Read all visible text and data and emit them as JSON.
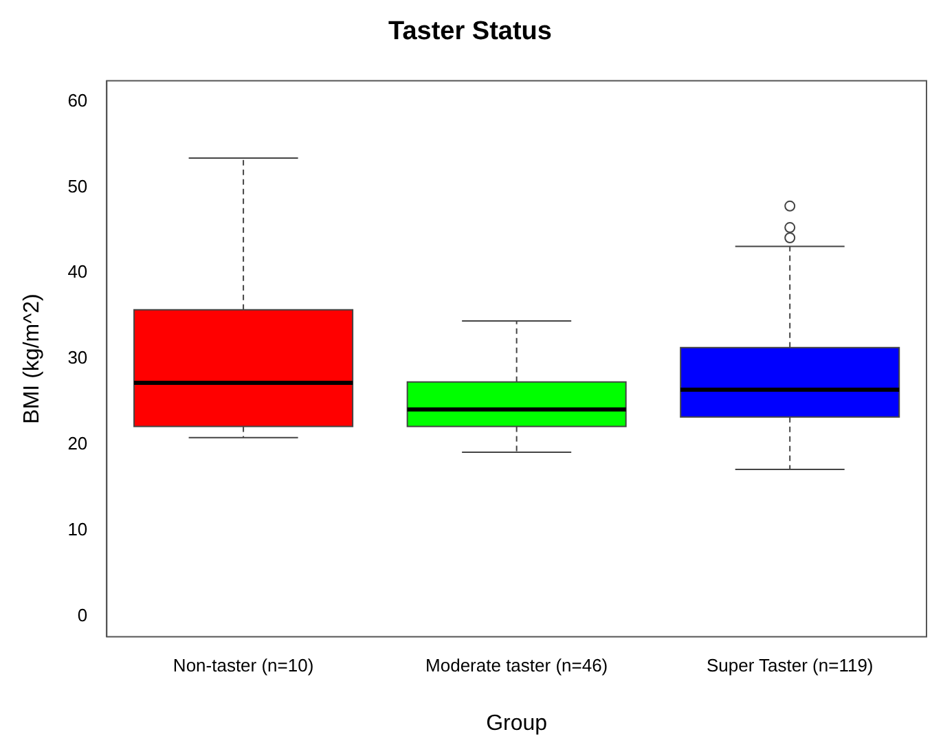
{
  "chart_data": {
    "type": "box",
    "title": "Taster Status",
    "xlabel": "Group",
    "ylabel": "BMI (kg/m^2)",
    "categories": [
      "Non-taster (n=10)",
      "Moderate taster (n=46)",
      "Super Taster (n=119)"
    ],
    "colors": [
      "#ff0000",
      "#00ff00",
      "#0000ff"
    ],
    "boxes": [
      {
        "low": 20.8,
        "q1": 22.1,
        "median": 27.2,
        "q3": 35.7,
        "high": 53.4
      },
      {
        "low": 19.1,
        "q1": 22.1,
        "median": 24.1,
        "q3": 27.3,
        "high": 34.4
      },
      {
        "low": 17.1,
        "q1": 23.2,
        "median": 26.4,
        "q3": 31.3,
        "high": 43.1,
        "outliers": [
          44.1,
          45.3,
          47.8
        ]
      }
    ],
    "ylim": [
      -2.4,
      62.4
    ],
    "yticks": [
      0,
      10,
      20,
      30,
      40,
      50,
      60
    ],
    "grid": false,
    "legend": false
  }
}
